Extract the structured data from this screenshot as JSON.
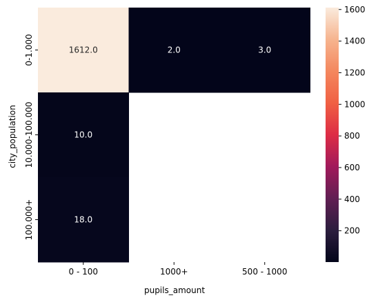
{
  "chart_data": {
    "type": "heatmap",
    "title": "",
    "xlabel": "pupils_amount",
    "ylabel": "city_population",
    "x_categories": [
      "0 - 100",
      "1000+",
      "500 - 1000"
    ],
    "y_categories": [
      "0-1.000",
      "10.000-100.000",
      "100.000+"
    ],
    "cells": [
      {
        "row": 0,
        "col": 0,
        "value": 1612.0,
        "label": "1612.0"
      },
      {
        "row": 0,
        "col": 1,
        "value": 2.0,
        "label": "2.0"
      },
      {
        "row": 0,
        "col": 2,
        "value": 3.0,
        "label": "3.0"
      },
      {
        "row": 1,
        "col": 0,
        "value": 10.0,
        "label": "10.0"
      },
      {
        "row": 2,
        "col": 0,
        "value": 18.0,
        "label": "18.0"
      }
    ],
    "colorbar": {
      "min": 2.0,
      "max": 1612.0,
      "ticks": [
        "200",
        "400",
        "600",
        "800",
        "1000",
        "1200",
        "1400",
        "1600"
      ],
      "tick_values": [
        200,
        400,
        600,
        800,
        1000,
        1200,
        1400,
        1600
      ],
      "colormap": "rocket",
      "stops": [
        "#03051a",
        "#2c1e3e",
        "#611f53",
        "#a11a5b",
        "#dd2c45",
        "#f06043",
        "#f4875e",
        "#f6b48f",
        "#faebdd"
      ]
    },
    "missing_cell_color": "#ffffff",
    "grid": false
  }
}
